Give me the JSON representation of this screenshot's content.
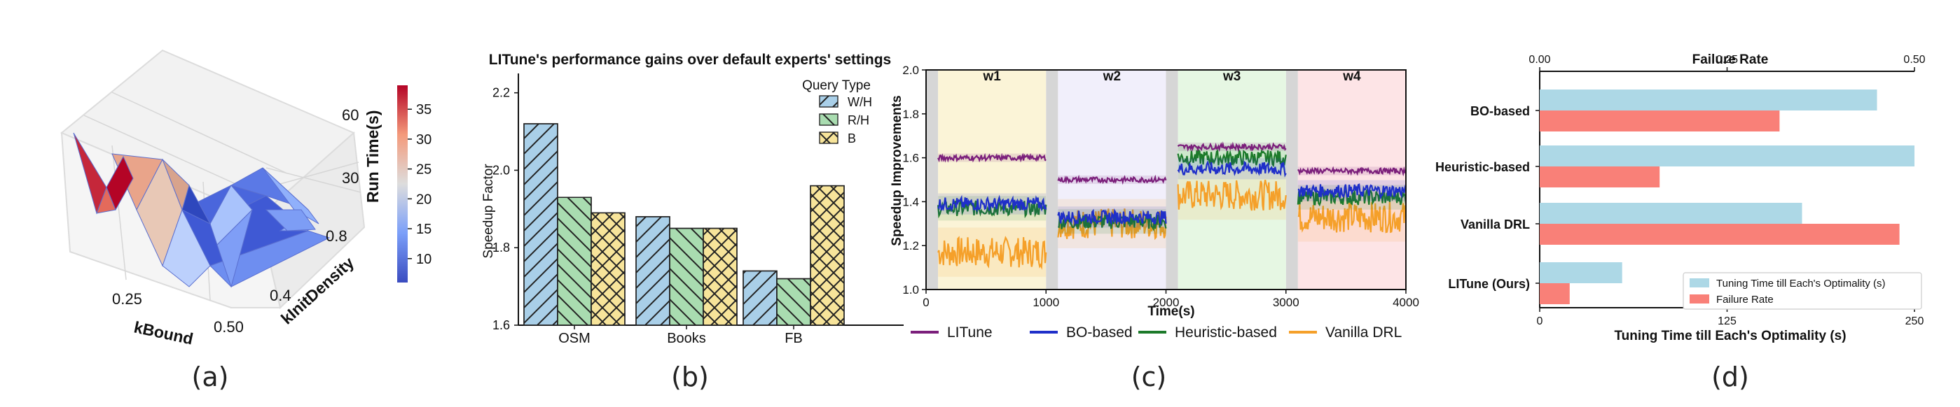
{
  "captions": [
    "(a)",
    "(b)",
    "(c)",
    "(d)"
  ],
  "chart_data": [
    {
      "type": "surface3d",
      "xlabel": "kBound",
      "ylabel": "kInitDensity",
      "zlabel": "Run Time(s)",
      "x_ticks": [
        "0.25",
        "0.50"
      ],
      "y_ticks": [
        "0.4",
        "0.8"
      ],
      "z_ticks": [
        "30",
        "60"
      ],
      "colorbar_ticks": [
        "10",
        "15",
        "20",
        "25",
        "30",
        "35"
      ],
      "colorbar_range": [
        6,
        39
      ],
      "colors": {
        "low": "#3b4cc0",
        "mid": "#dddddd",
        "high": "#b40426"
      }
    },
    {
      "type": "bar",
      "title": "LITune's performance gains over default experts' settings",
      "ylabel": "Speedup Factor",
      "categories": [
        "OSM",
        "Books",
        "FB"
      ],
      "legend_title": "Query Type",
      "legend_position": "top-right",
      "ylim": [
        1.6,
        2.25
      ],
      "yticks": [
        1.6,
        1.8,
        2.0,
        2.2
      ],
      "series": [
        {
          "name": "W/H",
          "values": [
            2.12,
            1.88,
            1.74
          ],
          "color": "#a9cfe8",
          "hatch": "//"
        },
        {
          "name": "R/H",
          "values": [
            1.93,
            1.85,
            1.72
          ],
          "color": "#a9dcb0",
          "hatch": "\\\\"
        },
        {
          "name": "B",
          "values": [
            1.89,
            1.85,
            1.96
          ],
          "color": "#f7e49a",
          "hatch": "xx"
        }
      ]
    },
    {
      "type": "line",
      "xlabel": "Time(s)",
      "ylabel": "Speedup Improvements",
      "xlim": [
        0,
        4000
      ],
      "ylim": [
        1.0,
        2.0
      ],
      "xticks": [
        0,
        1000,
        2000,
        3000,
        4000
      ],
      "yticks": [
        1.0,
        1.2,
        1.4,
        1.6,
        1.8,
        2.0
      ],
      "legend_position": "bottom",
      "phases": [
        {
          "label": "w1",
          "start": 100,
          "end": 1000,
          "color": "#fbf4d7"
        },
        {
          "label": "w2",
          "start": 1100,
          "end": 2000,
          "color": "#f1effb"
        },
        {
          "label": "w3",
          "start": 2100,
          "end": 3000,
          "color": "#e6f7e3"
        },
        {
          "label": "w4",
          "start": 3100,
          "end": 4000,
          "color": "#fde4e6"
        }
      ],
      "gaps": [
        [
          0,
          100
        ],
        [
          1000,
          1100
        ],
        [
          2000,
          2100
        ],
        [
          3000,
          3100
        ]
      ],
      "series": [
        {
          "name": "LITune",
          "color": "#7b1f7b",
          "segment_means": [
            1.6,
            1.5,
            1.65,
            1.54
          ],
          "noise": 0.012
        },
        {
          "name": "BO-based",
          "color": "#1f2fc9",
          "segment_means": [
            1.39,
            1.33,
            1.55,
            1.45
          ],
          "noise": 0.03
        },
        {
          "name": "Heuristic-based",
          "color": "#1c7a2a",
          "segment_means": [
            1.37,
            1.31,
            1.6,
            1.42
          ],
          "noise": 0.035
        },
        {
          "name": "Vanilla DRL",
          "color": "#f5a02a",
          "segment_means": [
            1.17,
            1.3,
            1.43,
            1.33
          ],
          "noise": 0.07
        }
      ]
    },
    {
      "type": "bar",
      "orientation": "horizontal",
      "top_axis_title": "Failure Rate",
      "top_axis_color": "#e00000",
      "bottom_axis_title": "Tuning Time till Each's Optimality (s)",
      "bottom_axis_color": "#1010cc",
      "categories": [
        "BO-based",
        "Heuristic-based",
        "Vanilla DRL",
        "LITune (Ours)"
      ],
      "top_xlim": [
        0,
        0.5
      ],
      "top_ticks": [
        "0.00",
        "0.25",
        "0.50"
      ],
      "bottom_xlim": [
        0,
        250
      ],
      "bottom_ticks": [
        "0",
        "125",
        "250"
      ],
      "legend_position": "lower-right",
      "series": [
        {
          "name": "Tuning Time till Each's Optimality (s)",
          "axis": "bottom",
          "color": "#add8e6",
          "values": [
            225,
            250,
            175,
            55
          ]
        },
        {
          "name": "Failure Rate",
          "axis": "top",
          "color": "#f98078",
          "values": [
            0.32,
            0.16,
            0.48,
            0.04
          ]
        }
      ]
    }
  ]
}
